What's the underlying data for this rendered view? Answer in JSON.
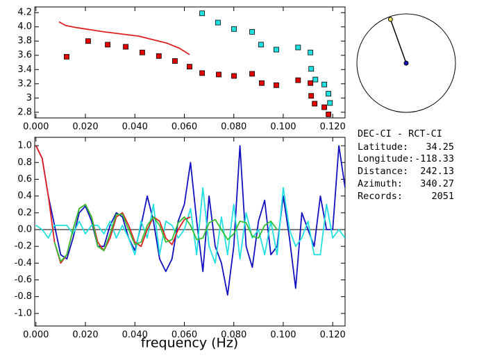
{
  "chart_data": [
    {
      "type": "scatter",
      "xlim": [
        -0.0005,
        0.125
      ],
      "ylim": [
        2.72,
        4.28
      ],
      "xticks": [
        {
          "value": 0,
          "label": "0.000"
        },
        {
          "value": 0.02,
          "label": "0.020"
        },
        {
          "value": 0.04,
          "label": "0.040"
        },
        {
          "value": 0.06,
          "label": "0.060"
        },
        {
          "value": 0.08,
          "label": "0.080"
        },
        {
          "value": 0.1,
          "label": "0.100"
        },
        {
          "value": 0.12,
          "label": "0.120"
        }
      ],
      "yticks": [
        2.8,
        3,
        {
          "value": 3.2,
          "label": "3.2"
        },
        3.4,
        3.6,
        3.8,
        {
          "value": 4,
          "label": "4.0"
        },
        4.2
      ],
      "series": [
        {
          "type": "line",
          "color": "#e02020",
          "x": [
            0.0093,
            0.012,
            0.0163,
            0.0275,
            0.0416,
            0.053,
            0.058,
            0.0621
          ],
          "values": [
            4.07,
            4.02,
            3.99,
            3.93,
            3.87,
            3.77,
            3.7,
            3.61
          ]
        },
        {
          "type": "scatter",
          "color": "#e00000",
          "x": [
            0.0124,
            0.0211,
            0.029,
            0.0363,
            0.043,
            0.0497,
            0.0562,
            0.0621,
            0.0672,
            0.0739,
            0.0801,
            0.0874,
            0.0913,
            0.0972,
            0.106,
            0.111,
            0.1113,
            0.1127,
            0.1166,
            0.1183
          ],
          "values": [
            3.58,
            3.8,
            3.75,
            3.72,
            3.64,
            3.59,
            3.52,
            3.44,
            3.35,
            3.33,
            3.31,
            3.34,
            3.21,
            3.18,
            3.25,
            3.21,
            3.03,
            2.92,
            2.87,
            2.77
          ]
        },
        {
          "type": "scatter",
          "color": "#20e0e0",
          "x": [
            0.0672,
            0.0736,
            0.0801,
            0.0874,
            0.091,
            0.0972,
            0.106,
            0.111,
            0.1113,
            0.113,
            0.1166,
            0.1183,
            0.1189
          ],
          "values": [
            4.19,
            4.06,
            3.97,
            3.93,
            3.75,
            3.68,
            3.71,
            3.64,
            3.41,
            3.26,
            3.19,
            3.06,
            2.93
          ]
        }
      ]
    },
    {
      "type": "line",
      "xlabel": "frequency (Hz)",
      "xlim": [
        -0.0005,
        0.125
      ],
      "ylim": [
        -1.15,
        1.1
      ],
      "hline": 0,
      "xticks": [
        {
          "value": 0,
          "label": "0.000"
        },
        {
          "value": 0.02,
          "label": "0.020"
        },
        {
          "value": 0.04,
          "label": "0.040"
        },
        {
          "value": 0.06,
          "label": "0.060"
        },
        {
          "value": 0.08,
          "label": "0.080"
        },
        {
          "value": 0.1,
          "label": "0.100"
        },
        {
          "value": 0.12,
          "label": "0.120"
        }
      ],
      "yticks": [
        {
          "value": -1,
          "label": "-1.0"
        },
        -0.8,
        -0.6,
        -0.4,
        -0.2,
        {
          "value": 0,
          "label": "0.0"
        },
        0.2,
        0.4,
        0.6,
        0.8,
        {
          "value": 1,
          "label": "1.0"
        }
      ],
      "series": [
        {
          "color": "#1010c0",
          "x": [
            0,
            0.0025,
            0.005,
            0.0075,
            0.01,
            0.0125,
            0.015,
            0.0175,
            0.02,
            0.0225,
            0.025,
            0.0275,
            0.03,
            0.0325,
            0.035,
            0.0375,
            0.04,
            0.0425,
            0.045,
            0.0475,
            0.05,
            0.0525,
            0.055,
            0.0575,
            0.06,
            0.0625,
            0.065,
            0.0675,
            0.07,
            0.0725,
            0.075,
            0.0775,
            0.08,
            0.0825,
            0.085,
            0.0875,
            0.09,
            0.0925,
            0.095,
            0.0975,
            0.1,
            0.1025,
            0.105,
            0.1075,
            0.11,
            0.1125,
            0.115,
            0.1175,
            0.12,
            0.1225,
            0.125
          ],
          "values": [
            1.0,
            0.85,
            0.4,
            0.05,
            -0.3,
            -0.35,
            -0.1,
            0.2,
            0.28,
            0.1,
            -0.2,
            -0.2,
            0.05,
            0.2,
            0.15,
            -0.1,
            -0.25,
            0.05,
            0.4,
            0.1,
            -0.35,
            -0.5,
            -0.35,
            0.1,
            0.3,
            0.8,
            0.1,
            -0.5,
            0.4,
            -0.2,
            -0.4,
            -0.78,
            -0.2,
            1.0,
            -0.2,
            -0.45,
            0.1,
            0.35,
            -0.3,
            -0.2,
            0.4,
            -0.1,
            -0.7,
            0.2,
            0.0,
            -0.2,
            0.4,
            0.0,
            0.0,
            1.0,
            0.5
          ]
        },
        {
          "color": "#20e0e0",
          "x": [
            0,
            0.0025,
            0.005,
            0.0075,
            0.01,
            0.0125,
            0.015,
            0.0175,
            0.02,
            0.0225,
            0.025,
            0.0275,
            0.03,
            0.0325,
            0.035,
            0.0375,
            0.04,
            0.0425,
            0.045,
            0.0475,
            0.05,
            0.0525,
            0.055,
            0.0575,
            0.06,
            0.0625,
            0.065,
            0.0675,
            0.07,
            0.0725,
            0.075,
            0.0775,
            0.08,
            0.0825,
            0.085,
            0.0875,
            0.09,
            0.0925,
            0.095,
            0.0975,
            0.1,
            0.1025,
            0.105,
            0.1075,
            0.11,
            0.1125,
            0.115,
            0.1175,
            0.12,
            0.1225,
            0.125
          ],
          "values": [
            0.05,
            0.0,
            -0.1,
            0.05,
            0.05,
            0.05,
            -0.05,
            0.1,
            -0.05,
            0.05,
            0.05,
            -0.05,
            0.1,
            -0.1,
            0.05,
            -0.1,
            -0.3,
            0.1,
            -0.1,
            0.3,
            -0.3,
            0.1,
            0.05,
            -0.1,
            0.0,
            0.25,
            -0.3,
            0.5,
            -0.2,
            -0.4,
            0.15,
            -0.3,
            0.3,
            -0.35,
            0.2,
            -0.1,
            0.0,
            -0.3,
            0.1,
            -0.3,
            0.5,
            0.0,
            -0.2,
            -0.1,
            0.1,
            -0.3,
            -0.3,
            0.3,
            -0.1,
            0.0,
            -0.1
          ]
        },
        {
          "color": "#e02020",
          "x": [
            0,
            0.0025,
            0.005,
            0.0075,
            0.01,
            0.0125,
            0.015,
            0.0175,
            0.02,
            0.0225,
            0.025,
            0.0275,
            0.03,
            0.0325,
            0.035,
            0.0375,
            0.04,
            0.0425,
            0.045,
            0.0475,
            0.05,
            0.0525,
            0.055,
            0.0575,
            0.06,
            0.0625
          ],
          "values": [
            1.0,
            0.85,
            0.4,
            -0.15,
            -0.4,
            -0.3,
            0.0,
            0.25,
            0.3,
            0.15,
            -0.15,
            -0.25,
            -0.1,
            0.15,
            0.2,
            0.05,
            -0.15,
            -0.2,
            0.0,
            0.15,
            0.1,
            -0.1,
            -0.18,
            0.0,
            0.12,
            0.15
          ]
        },
        {
          "color": "#30c030",
          "x": [
            0.0075,
            0.01,
            0.0125,
            0.015,
            0.0175,
            0.02,
            0.0225,
            0.025,
            0.0275,
            0.03,
            0.0325,
            0.035,
            0.0375,
            0.04,
            0.0425,
            0.045,
            0.0475,
            0.05,
            0.0525,
            0.055,
            0.0575,
            0.06,
            0.0625,
            0.065,
            0.0675,
            0.07,
            0.0725,
            0.075,
            0.0775,
            0.08,
            0.0825,
            0.085,
            0.0875,
            0.09,
            0.0925,
            0.095,
            0.0975
          ],
          "values": [
            -0.15,
            -0.38,
            -0.3,
            0.0,
            0.25,
            0.3,
            0.15,
            -0.2,
            -0.25,
            -0.05,
            0.18,
            0.18,
            0.0,
            -0.18,
            -0.15,
            0.05,
            0.15,
            0.05,
            -0.15,
            -0.12,
            0.08,
            0.15,
            0.05,
            -0.12,
            -0.1,
            0.08,
            0.12,
            0.0,
            -0.12,
            -0.05,
            0.1,
            0.08,
            -0.08,
            -0.1,
            0.05,
            0.1,
            0.0
          ]
        }
      ]
    }
  ],
  "info": {
    "title": "DEC-CI - RCT-CI",
    "rows": [
      {
        "label": "Latitude:",
        "value": 34.25
      },
      {
        "label": "Longitude:",
        "value": -118.33
      },
      {
        "label": "Distance:",
        "value": 242.13
      },
      {
        "label": "Azimuth:",
        "value": 340.27
      },
      {
        "label": "Records:",
        "value": 2051
      }
    ]
  }
}
